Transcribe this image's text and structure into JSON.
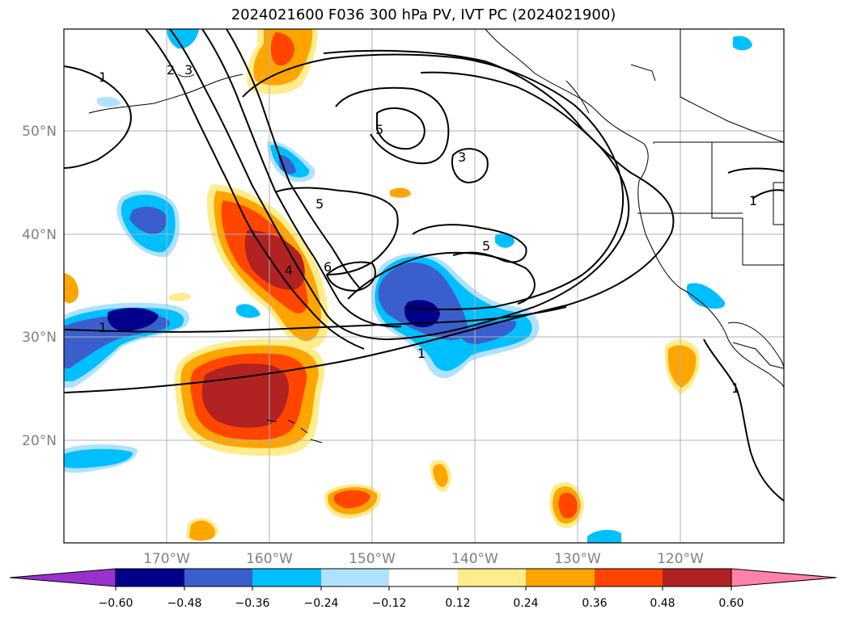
{
  "title": "2024021600 F036 300 hPa PV, IVT PC (2024021900)",
  "latitude_labels": [
    "50°N",
    "40°N",
    "30°N",
    "20°N"
  ],
  "longitude_labels": [
    "170°W",
    "160°W",
    "150°W",
    "140°W",
    "130°W",
    "120°W"
  ],
  "colorbar": {
    "ticks": [
      "−0.60",
      "−0.48",
      "−0.36",
      "−0.24",
      "−0.12",
      "0.12",
      "0.24",
      "0.36",
      "0.48",
      "0.60"
    ],
    "colors": [
      "#9932cc",
      "#00008b",
      "#3a5fcd",
      "#00bfff",
      "#b0e2ff",
      "#ffffff",
      "#ffec8b",
      "#ffa500",
      "#ff4500",
      "#b22222",
      "#ff82ab"
    ]
  },
  "contour_labels": [
    "1",
    "2",
    "3",
    "5",
    "3",
    "5",
    "5",
    "4",
    "6",
    "1",
    "1",
    "1",
    "1"
  ],
  "map": {
    "lon_range": [
      -180,
      -110
    ],
    "lat_range": [
      10,
      60
    ],
    "gridlines": true,
    "palette": {
      "land_outline": "#000000",
      "contour": "#000000",
      "gridline": "#b0b0b0"
    }
  }
}
